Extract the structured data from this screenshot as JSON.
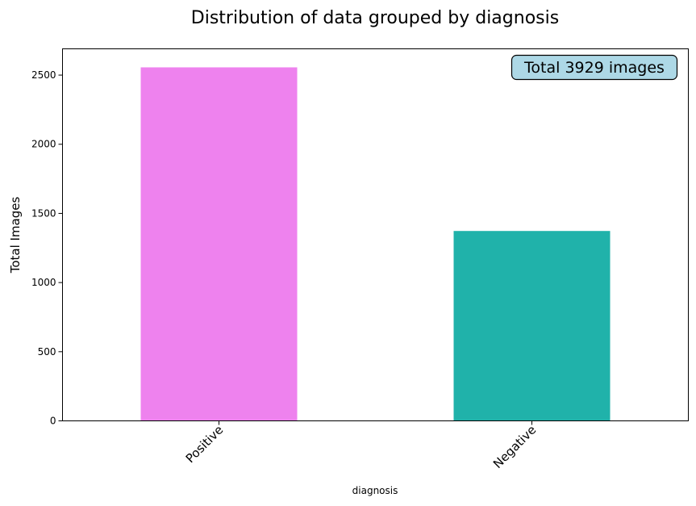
{
  "chart_data": {
    "type": "bar",
    "title": "Distribution of data grouped by diagnosis",
    "xlabel": "diagnosis",
    "ylabel": "Total Images",
    "categories": [
      "Positive",
      "Negative"
    ],
    "values": [
      2556,
      1373
    ],
    "colors": [
      "#ee82ee",
      "#20b2aa"
    ],
    "ylim": [
      0,
      2690
    ],
    "yticks": [
      0,
      500,
      1000,
      1500,
      2000,
      2500
    ],
    "ytick_labels": [
      "0",
      "500",
      "1000",
      "1500",
      "2000",
      "2500"
    ],
    "xtick_rotation": 45,
    "grid": false,
    "annotation": {
      "text": "Total 3929 images",
      "placement": "top-right",
      "background": "#add8e6"
    }
  }
}
